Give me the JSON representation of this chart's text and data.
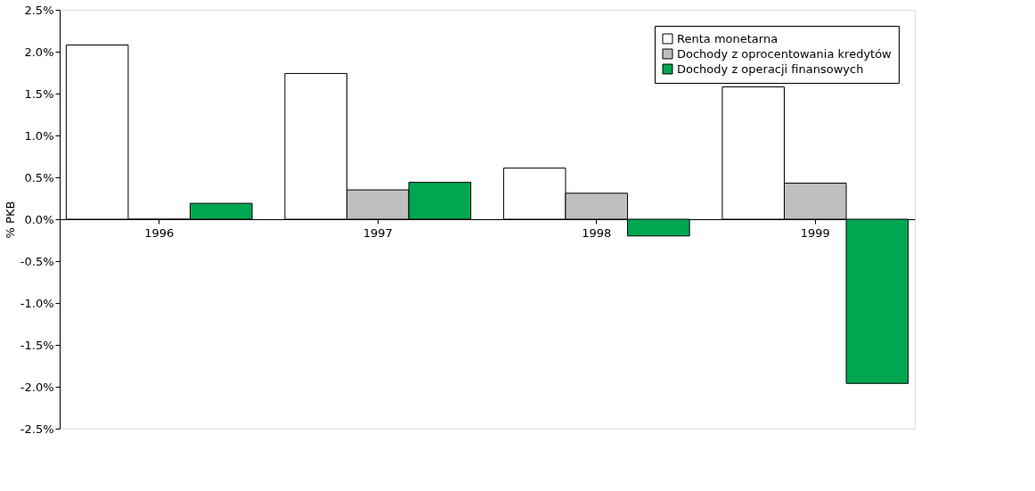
{
  "chart_data": {
    "type": "bar",
    "ylabel": "% PKB",
    "categories": [
      "1996",
      "1997",
      "1998",
      "1999"
    ],
    "series": [
      {
        "name": "Renta monetarna",
        "color": "#ffffff",
        "values": [
          2.08,
          1.74,
          0.61,
          1.58
        ]
      },
      {
        "name": "Dochody z oprocentowania kredytów",
        "color": "#bfbfbf",
        "values": [
          0,
          0.35,
          0.31,
          0.43
        ]
      },
      {
        "name": "Dochody z operacji finansowych",
        "color": "#00a650",
        "values": [
          0.19,
          0.44,
          -0.2,
          -1.96
        ]
      }
    ],
    "ylim": [
      -2.5,
      2.5
    ],
    "yticks": [
      {
        "value": -2.5,
        "label": "-2.5%"
      },
      {
        "value": -2.0,
        "label": "-2.0%"
      },
      {
        "value": -1.5,
        "label": "-1.5%"
      },
      {
        "value": -1.0,
        "label": "-1.0%"
      },
      {
        "value": -0.5,
        "label": "-0.5%"
      },
      {
        "value": 0,
        "label": "0.0%"
      },
      {
        "value": 0.5,
        "label": "0.5%"
      },
      {
        "value": 1.0,
        "label": "1.0%"
      },
      {
        "value": 1.5,
        "label": "1.5%"
      },
      {
        "value": 2.0,
        "label": "2.0%"
      },
      {
        "value": 2.5,
        "label": "2.5%"
      }
    ],
    "grid": false,
    "legend": "top right"
  }
}
